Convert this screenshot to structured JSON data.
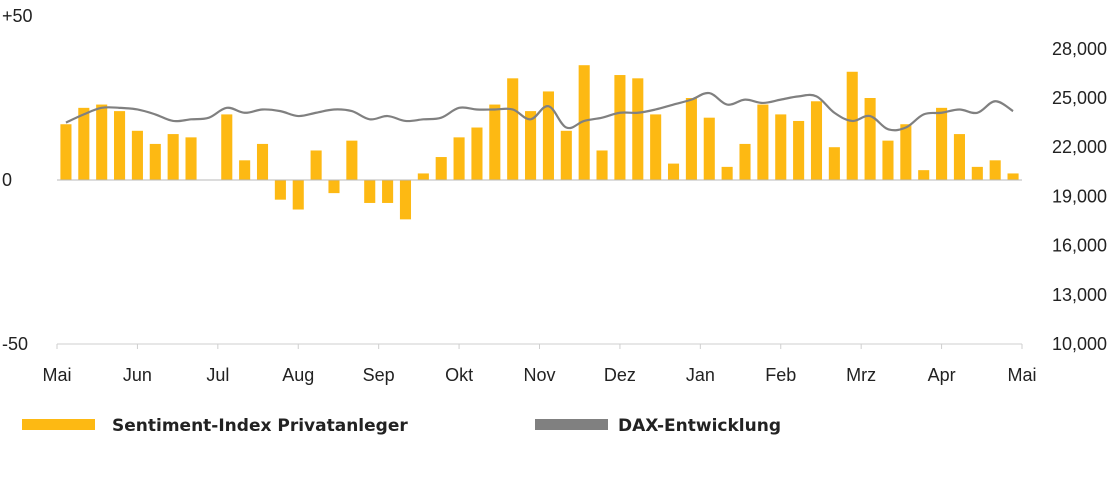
{
  "chart_data": {
    "type": "bar",
    "x_tick_labels": [
      "Mai",
      "Jun",
      "Jul",
      "Aug",
      "Sep",
      "Okt",
      "Nov",
      "Dez",
      "Jan",
      "Feb",
      "Mrz",
      "Apr",
      "Mai"
    ],
    "left_axis": {
      "ylim": [
        -50,
        50
      ],
      "tick_labels": [
        {
          "value": 50,
          "label": "+50"
        },
        {
          "value": 0,
          "label": "0"
        },
        {
          "value": -50,
          "label": "-50"
        }
      ]
    },
    "right_axis": {
      "ylim": [
        10000,
        30000
      ],
      "ticks": [
        10000,
        13000,
        16000,
        19000,
        22000,
        25000,
        28000
      ],
      "tick_labels": [
        "10,000",
        "13,000",
        "16,000",
        "19,000",
        "22,000",
        "25,000",
        "28,000"
      ]
    },
    "series": [
      {
        "name": "Sentiment-Index Privatanleger",
        "type": "bar",
        "axis": "left",
        "color": "#FDB913",
        "values": [
          17,
          22,
          23,
          21,
          15,
          11,
          14,
          13,
          null,
          20,
          6,
          11,
          -6,
          -9,
          9,
          -4,
          12,
          -7,
          -7,
          -12,
          2,
          7,
          13,
          16,
          23,
          31,
          21,
          27,
          15,
          35,
          9,
          32,
          31,
          20,
          5,
          25,
          19,
          4,
          11,
          23,
          20,
          18,
          24,
          10,
          33,
          25,
          12,
          17,
          3,
          22,
          14,
          4,
          6,
          2
        ]
      },
      {
        "name": "DAX-Entwicklung",
        "type": "line",
        "axis": "right",
        "color": "#808080",
        "values": [
          23500,
          24000,
          24400,
          24400,
          24300,
          24000,
          23600,
          23700,
          23800,
          24400,
          24100,
          24300,
          24200,
          23900,
          24100,
          24300,
          24200,
          23700,
          23900,
          23600,
          23700,
          23800,
          24400,
          24300,
          24300,
          24300,
          23700,
          24500,
          23200,
          23600,
          23800,
          24100,
          24100,
          24300,
          24600,
          24900,
          25300,
          24600,
          24900,
          24700,
          24900,
          25100,
          25100,
          24100,
          23600,
          23900,
          23100,
          23200,
          24000,
          24100,
          24300,
          24100,
          24800,
          24200
        ]
      }
    ],
    "legend": {
      "position": "bottom",
      "items": [
        {
          "label": "Sentiment-Index Privatanleger",
          "color": "#FDB913"
        },
        {
          "label": "DAX-Entwicklung",
          "color": "#808080"
        }
      ]
    },
    "grid": false
  }
}
